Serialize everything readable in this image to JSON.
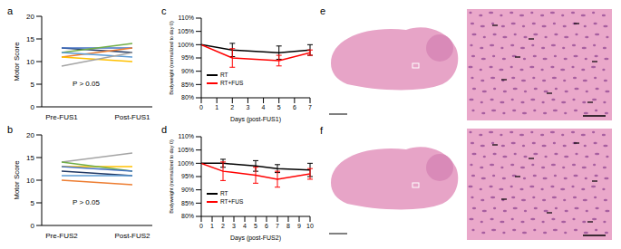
{
  "chart_data": [
    {
      "type": "line",
      "title": "a",
      "categories": [
        "Pre-FUS1",
        "Post-FUS1"
      ],
      "y_label": "Motor Score",
      "ylim": [
        0,
        20
      ],
      "yticks": [
        0,
        5,
        10,
        15,
        20
      ],
      "annotations": [
        "P > 0.05"
      ],
      "series": [
        {
          "color": "#203864",
          "values": [
            13,
            12
          ]
        },
        {
          "color": "#4472c4",
          "values": [
            13,
            13
          ]
        },
        {
          "color": "#70ad47",
          "values": [
            12,
            14
          ]
        },
        {
          "color": "#ed7d31",
          "values": [
            11,
            13
          ]
        },
        {
          "color": "#ffc000",
          "values": [
            11,
            10
          ]
        },
        {
          "color": "#5b9bd5",
          "values": [
            12,
            11
          ]
        },
        {
          "color": "#a5a5a5",
          "values": [
            9,
            12
          ]
        }
      ]
    },
    {
      "type": "line",
      "title": "b",
      "categories": [
        "Pre-FUS2",
        "Post-FUS2"
      ],
      "y_label": "Motor Score",
      "ylim": [
        0,
        20
      ],
      "yticks": [
        0,
        5,
        10,
        15,
        20
      ],
      "annotations": [
        "P > 0.05"
      ],
      "series": [
        {
          "color": "#a5a5a5",
          "values": [
            14,
            16
          ]
        },
        {
          "color": "#ffc000",
          "values": [
            13,
            13
          ]
        },
        {
          "color": "#70ad47",
          "values": [
            14,
            12
          ]
        },
        {
          "color": "#4472c4",
          "values": [
            13,
            12
          ]
        },
        {
          "color": "#203864",
          "values": [
            12,
            11
          ]
        },
        {
          "color": "#5b9bd5",
          "values": [
            11,
            11
          ]
        },
        {
          "color": "#ed7d31",
          "values": [
            10,
            9
          ]
        }
      ]
    },
    {
      "type": "line",
      "title": "c",
      "x_label": "Days (post-FUS1)",
      "y_label": "Bodyweight (normalized to day 0)",
      "xlim": [
        0,
        7
      ],
      "xticks": [
        0,
        1,
        2,
        3,
        4,
        5,
        6,
        7
      ],
      "ylim": [
        80,
        110
      ],
      "yticks": [
        {
          "value": 80,
          "label": "80%"
        },
        {
          "value": 85,
          "label": "85%"
        },
        {
          "value": 90,
          "label": "90%"
        },
        {
          "value": 95,
          "label": "95%"
        },
        {
          "value": 100,
          "label": "100%"
        },
        {
          "value": 105,
          "label": "105%"
        },
        {
          "value": 110,
          "label": "110%"
        }
      ],
      "legend": "lower left",
      "series": [
        {
          "name": "RT",
          "color": "#000000",
          "x": [
            0,
            2,
            5,
            7
          ],
          "values": [
            100,
            98,
            97,
            98
          ],
          "errors": [
            0,
            2.5,
            2.5,
            2
          ]
        },
        {
          "name": "RT+FUS",
          "color": "#ff0000",
          "x": [
            0,
            2,
            5,
            7
          ],
          "values": [
            100,
            95,
            94,
            97
          ],
          "errors": [
            0,
            3.5,
            2,
            1
          ]
        }
      ]
    },
    {
      "type": "line",
      "title": "d",
      "x_label": "Days (post-FUS2)",
      "y_label": "Bodyweight (normalized to day 0)",
      "xlim": [
        0,
        10
      ],
      "xticks": [
        0,
        1,
        2,
        3,
        4,
        5,
        6,
        7,
        8,
        9,
        10
      ],
      "ylim": [
        80,
        110
      ],
      "yticks": [
        {
          "value": 80,
          "label": "80%"
        },
        {
          "value": 85,
          "label": "85%"
        },
        {
          "value": 90,
          "label": "90%"
        },
        {
          "value": 95,
          "label": "95%"
        },
        {
          "value": 100,
          "label": "100%"
        },
        {
          "value": 105,
          "label": "105%"
        },
        {
          "value": 110,
          "label": "110%"
        }
      ],
      "legend": "lower left",
      "series": [
        {
          "name": "RT",
          "color": "#000000",
          "x": [
            0,
            2,
            5,
            7,
            10
          ],
          "values": [
            100,
            100,
            99,
            98,
            97.5
          ],
          "errors": [
            0,
            1.5,
            2,
            1.5,
            2.5
          ]
        },
        {
          "name": "RT+FUS",
          "color": "#ff0000",
          "x": [
            0,
            2,
            5,
            7,
            10
          ],
          "values": [
            100,
            97,
            95.5,
            94,
            96
          ],
          "errors": [
            0,
            3.5,
            3,
            3,
            2
          ]
        }
      ]
    },
    {
      "type": "image",
      "title": "e"
    },
    {
      "type": "image",
      "title": "f"
    }
  ]
}
